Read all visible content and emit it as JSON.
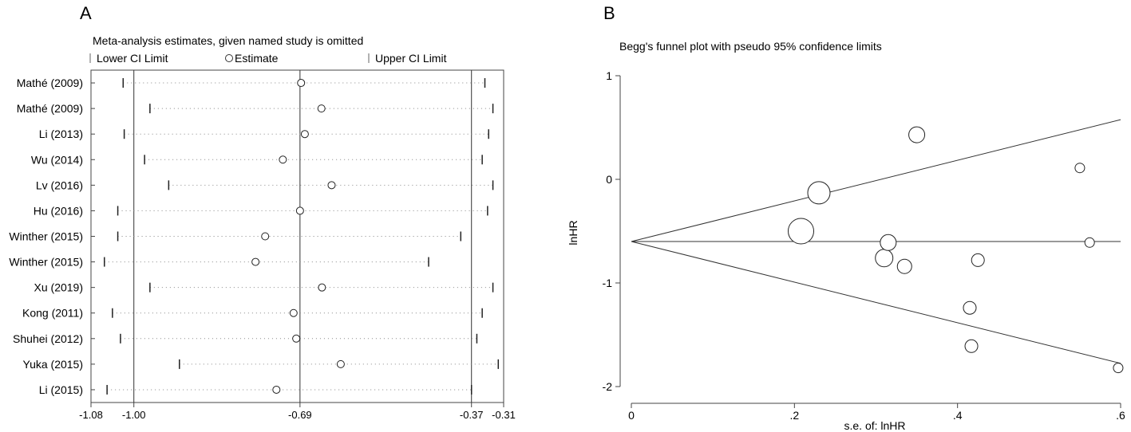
{
  "chart_data": [
    {
      "panel_letter": "A",
      "type": "forest",
      "title": "Meta-analysis estimates, given named study is omitted",
      "legend": {
        "lower": "Lower CI Limit",
        "estimate": "Estimate",
        "upper": "Upper CI Limit"
      },
      "xlim": [
        -1.08,
        -0.31
      ],
      "x_ticks": [
        -1.08,
        -1.0,
        -0.69,
        -0.37,
        -0.31
      ],
      "x_tick_labels": [
        "-1.08",
        "-1.00",
        "-0.69",
        "-0.37",
        "-0.31"
      ],
      "reference_lines": [
        -1.0,
        -0.69,
        -0.37
      ],
      "studies": [
        {
          "name": "Mathé (2009)",
          "lower": -1.02,
          "estimate": -0.688,
          "upper": -0.345
        },
        {
          "name": "Mathé (2009)",
          "lower": -0.97,
          "estimate": -0.65,
          "upper": -0.33
        },
        {
          "name": "Li (2013)",
          "lower": -1.018,
          "estimate": -0.681,
          "upper": -0.338
        },
        {
          "name": "Wu (2014)",
          "lower": -0.98,
          "estimate": -0.722,
          "upper": -0.35
        },
        {
          "name": "Lv (2016)",
          "lower": -0.935,
          "estimate": -0.631,
          "upper": -0.33
        },
        {
          "name": "Hu (2016)",
          "lower": -1.03,
          "estimate": -0.69,
          "upper": -0.34
        },
        {
          "name": "Winther (2015)",
          "lower": -1.03,
          "estimate": -0.755,
          "upper": -0.39
        },
        {
          "name": "Winther (2015)",
          "lower": -1.055,
          "estimate": -0.773,
          "upper": -0.45
        },
        {
          "name": "Xu (2019)",
          "lower": -0.97,
          "estimate": -0.649,
          "upper": -0.33
        },
        {
          "name": "Kong (2011)",
          "lower": -1.04,
          "estimate": -0.702,
          "upper": -0.35
        },
        {
          "name": "Shuhei (2012)",
          "lower": -1.025,
          "estimate": -0.697,
          "upper": -0.36
        },
        {
          "name": "Yuka (2015)",
          "lower": -0.915,
          "estimate": -0.614,
          "upper": -0.32
        },
        {
          "name": "Li (2015)",
          "lower": -1.05,
          "estimate": -0.734,
          "upper": -0.37
        }
      ]
    },
    {
      "panel_letter": "B",
      "type": "scatter",
      "title": "Begg's funnel plot with pseudo 95% confidence limits",
      "xlabel": "s.e. of: lnHR",
      "ylabel": "lnHR",
      "xlim": [
        0,
        0.6
      ],
      "ylim": [
        -2,
        1
      ],
      "x_ticks": [
        0,
        0.2,
        0.4,
        0.6
      ],
      "x_tick_labels": [
        "0",
        ".2",
        ".4",
        ".6"
      ],
      "y_ticks": [
        1,
        0,
        -1,
        -2
      ],
      "y_tick_labels": [
        "1",
        "0",
        "-1",
        "-2"
      ],
      "pooled_estimate": -0.6,
      "points": [
        {
          "x": 0.208,
          "y": -0.5,
          "size": 16
        },
        {
          "x": 0.23,
          "y": -0.13,
          "size": 14
        },
        {
          "x": 0.31,
          "y": -0.76,
          "size": 11
        },
        {
          "x": 0.315,
          "y": -0.61,
          "size": 10
        },
        {
          "x": 0.335,
          "y": -0.84,
          "size": 9
        },
        {
          "x": 0.35,
          "y": 0.43,
          "size": 10
        },
        {
          "x": 0.415,
          "y": -1.24,
          "size": 8
        },
        {
          "x": 0.417,
          "y": -1.61,
          "size": 8
        },
        {
          "x": 0.425,
          "y": -0.78,
          "size": 8
        },
        {
          "x": 0.55,
          "y": 0.11,
          "size": 6
        },
        {
          "x": 0.562,
          "y": -0.61,
          "size": 6
        },
        {
          "x": 0.597,
          "y": -1.82,
          "size": 6
        }
      ]
    }
  ]
}
